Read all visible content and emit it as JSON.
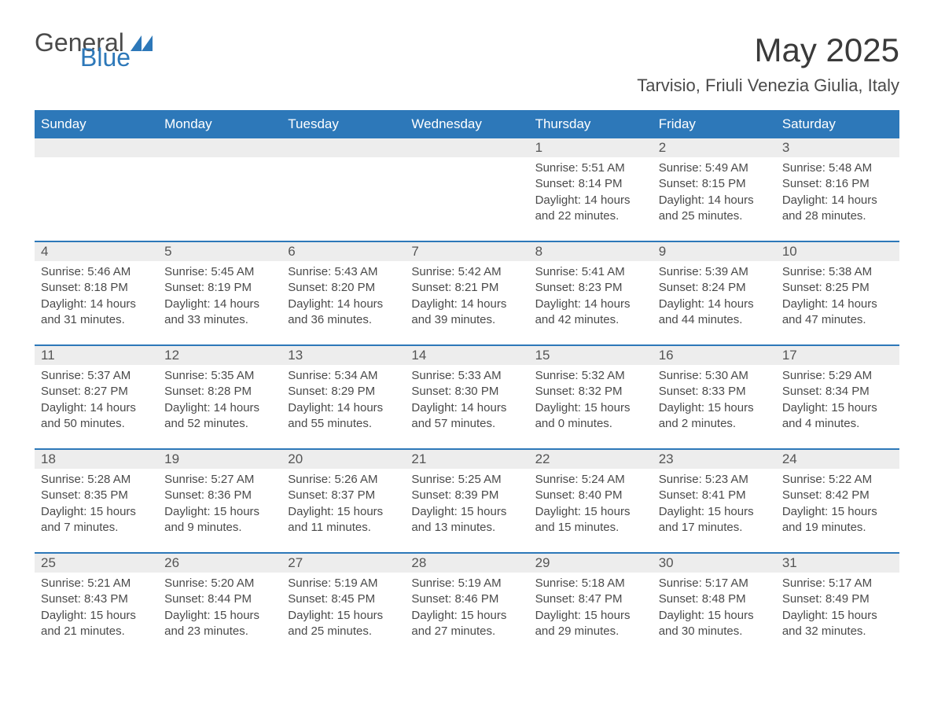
{
  "logo": {
    "word1": "General",
    "word2": "Blue"
  },
  "title": "May 2025",
  "location": "Tarvisio, Friuli Venezia Giulia, Italy",
  "colors": {
    "primary": "#2d78b9",
    "header_text": "#ffffff",
    "daynum_bg": "#ededed",
    "text": "#4a4a4a",
    "background": "#ffffff"
  },
  "weekdays": [
    "Sunday",
    "Monday",
    "Tuesday",
    "Wednesday",
    "Thursday",
    "Friday",
    "Saturday"
  ],
  "weeks": [
    [
      null,
      null,
      null,
      null,
      {
        "n": "1",
        "sr": "5:51 AM",
        "ss": "8:14 PM",
        "dl": "14 hours and 22 minutes."
      },
      {
        "n": "2",
        "sr": "5:49 AM",
        "ss": "8:15 PM",
        "dl": "14 hours and 25 minutes."
      },
      {
        "n": "3",
        "sr": "5:48 AM",
        "ss": "8:16 PM",
        "dl": "14 hours and 28 minutes."
      }
    ],
    [
      {
        "n": "4",
        "sr": "5:46 AM",
        "ss": "8:18 PM",
        "dl": "14 hours and 31 minutes."
      },
      {
        "n": "5",
        "sr": "5:45 AM",
        "ss": "8:19 PM",
        "dl": "14 hours and 33 minutes."
      },
      {
        "n": "6",
        "sr": "5:43 AM",
        "ss": "8:20 PM",
        "dl": "14 hours and 36 minutes."
      },
      {
        "n": "7",
        "sr": "5:42 AM",
        "ss": "8:21 PM",
        "dl": "14 hours and 39 minutes."
      },
      {
        "n": "8",
        "sr": "5:41 AM",
        "ss": "8:23 PM",
        "dl": "14 hours and 42 minutes."
      },
      {
        "n": "9",
        "sr": "5:39 AM",
        "ss": "8:24 PM",
        "dl": "14 hours and 44 minutes."
      },
      {
        "n": "10",
        "sr": "5:38 AM",
        "ss": "8:25 PM",
        "dl": "14 hours and 47 minutes."
      }
    ],
    [
      {
        "n": "11",
        "sr": "5:37 AM",
        "ss": "8:27 PM",
        "dl": "14 hours and 50 minutes."
      },
      {
        "n": "12",
        "sr": "5:35 AM",
        "ss": "8:28 PM",
        "dl": "14 hours and 52 minutes."
      },
      {
        "n": "13",
        "sr": "5:34 AM",
        "ss": "8:29 PM",
        "dl": "14 hours and 55 minutes."
      },
      {
        "n": "14",
        "sr": "5:33 AM",
        "ss": "8:30 PM",
        "dl": "14 hours and 57 minutes."
      },
      {
        "n": "15",
        "sr": "5:32 AM",
        "ss": "8:32 PM",
        "dl": "15 hours and 0 minutes."
      },
      {
        "n": "16",
        "sr": "5:30 AM",
        "ss": "8:33 PM",
        "dl": "15 hours and 2 minutes."
      },
      {
        "n": "17",
        "sr": "5:29 AM",
        "ss": "8:34 PM",
        "dl": "15 hours and 4 minutes."
      }
    ],
    [
      {
        "n": "18",
        "sr": "5:28 AM",
        "ss": "8:35 PM",
        "dl": "15 hours and 7 minutes."
      },
      {
        "n": "19",
        "sr": "5:27 AM",
        "ss": "8:36 PM",
        "dl": "15 hours and 9 minutes."
      },
      {
        "n": "20",
        "sr": "5:26 AM",
        "ss": "8:37 PM",
        "dl": "15 hours and 11 minutes."
      },
      {
        "n": "21",
        "sr": "5:25 AM",
        "ss": "8:39 PM",
        "dl": "15 hours and 13 minutes."
      },
      {
        "n": "22",
        "sr": "5:24 AM",
        "ss": "8:40 PM",
        "dl": "15 hours and 15 minutes."
      },
      {
        "n": "23",
        "sr": "5:23 AM",
        "ss": "8:41 PM",
        "dl": "15 hours and 17 minutes."
      },
      {
        "n": "24",
        "sr": "5:22 AM",
        "ss": "8:42 PM",
        "dl": "15 hours and 19 minutes."
      }
    ],
    [
      {
        "n": "25",
        "sr": "5:21 AM",
        "ss": "8:43 PM",
        "dl": "15 hours and 21 minutes."
      },
      {
        "n": "26",
        "sr": "5:20 AM",
        "ss": "8:44 PM",
        "dl": "15 hours and 23 minutes."
      },
      {
        "n": "27",
        "sr": "5:19 AM",
        "ss": "8:45 PM",
        "dl": "15 hours and 25 minutes."
      },
      {
        "n": "28",
        "sr": "5:19 AM",
        "ss": "8:46 PM",
        "dl": "15 hours and 27 minutes."
      },
      {
        "n": "29",
        "sr": "5:18 AM",
        "ss": "8:47 PM",
        "dl": "15 hours and 29 minutes."
      },
      {
        "n": "30",
        "sr": "5:17 AM",
        "ss": "8:48 PM",
        "dl": "15 hours and 30 minutes."
      },
      {
        "n": "31",
        "sr": "5:17 AM",
        "ss": "8:49 PM",
        "dl": "15 hours and 32 minutes."
      }
    ]
  ],
  "labels": {
    "sunrise": "Sunrise: ",
    "sunset": "Sunset: ",
    "daylight": "Daylight: "
  }
}
